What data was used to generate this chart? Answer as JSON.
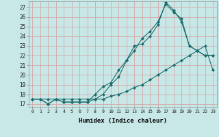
{
  "xlabel": "Humidex (Indice chaleur)",
  "bg_color": "#c8e8e8",
  "grid_color": "#d4a8a8",
  "line_color": "#1a6b6b",
  "xlim": [
    -0.5,
    23.5
  ],
  "ylim": [
    16.7,
    27.6
  ],
  "xticks": [
    0,
    1,
    2,
    3,
    4,
    5,
    6,
    7,
    8,
    9,
    10,
    11,
    12,
    13,
    14,
    15,
    16,
    17,
    18,
    19,
    20,
    21,
    22,
    23
  ],
  "yticks": [
    17,
    18,
    19,
    20,
    21,
    22,
    23,
    24,
    25,
    26,
    27
  ],
  "line1_x": [
    0,
    1,
    2,
    3,
    4,
    5,
    6,
    7,
    8,
    9,
    10,
    11,
    12,
    13,
    14,
    15,
    16,
    17,
    18,
    19,
    20,
    21,
    22,
    23
  ],
  "line1_y": [
    17.5,
    17.5,
    17.5,
    17.5,
    17.5,
    17.5,
    17.5,
    17.5,
    17.5,
    17.5,
    17.8,
    18.0,
    18.3,
    18.7,
    19.0,
    19.5,
    20.0,
    20.5,
    21.0,
    21.5,
    22.0,
    22.5,
    23.0,
    20.5
  ],
  "line2_x": [
    0,
    1,
    2,
    3,
    4,
    5,
    6,
    7,
    8,
    9,
    10,
    11,
    12,
    13,
    14,
    15,
    16,
    17,
    18,
    19,
    20,
    21,
    22,
    23
  ],
  "line2_y": [
    17.5,
    17.5,
    17.0,
    17.5,
    17.2,
    17.2,
    17.2,
    17.2,
    17.5,
    18.0,
    19.0,
    19.8,
    21.5,
    22.5,
    23.8,
    24.5,
    25.5,
    27.3,
    26.5,
    25.8,
    23.0,
    22.5,
    22.0,
    22.0
  ],
  "line3_x": [
    0,
    1,
    2,
    3,
    4,
    5,
    6,
    7,
    8,
    9,
    10,
    11,
    12,
    13,
    14,
    15,
    16,
    17,
    18,
    19,
    20,
    21,
    22,
    23
  ],
  "line3_y": [
    17.5,
    17.5,
    17.0,
    17.5,
    17.2,
    17.2,
    17.2,
    17.2,
    18.0,
    18.8,
    19.2,
    20.5,
    21.5,
    23.0,
    23.2,
    24.0,
    25.2,
    27.5,
    26.7,
    25.5,
    23.0,
    22.5,
    22.0,
    22.0
  ]
}
